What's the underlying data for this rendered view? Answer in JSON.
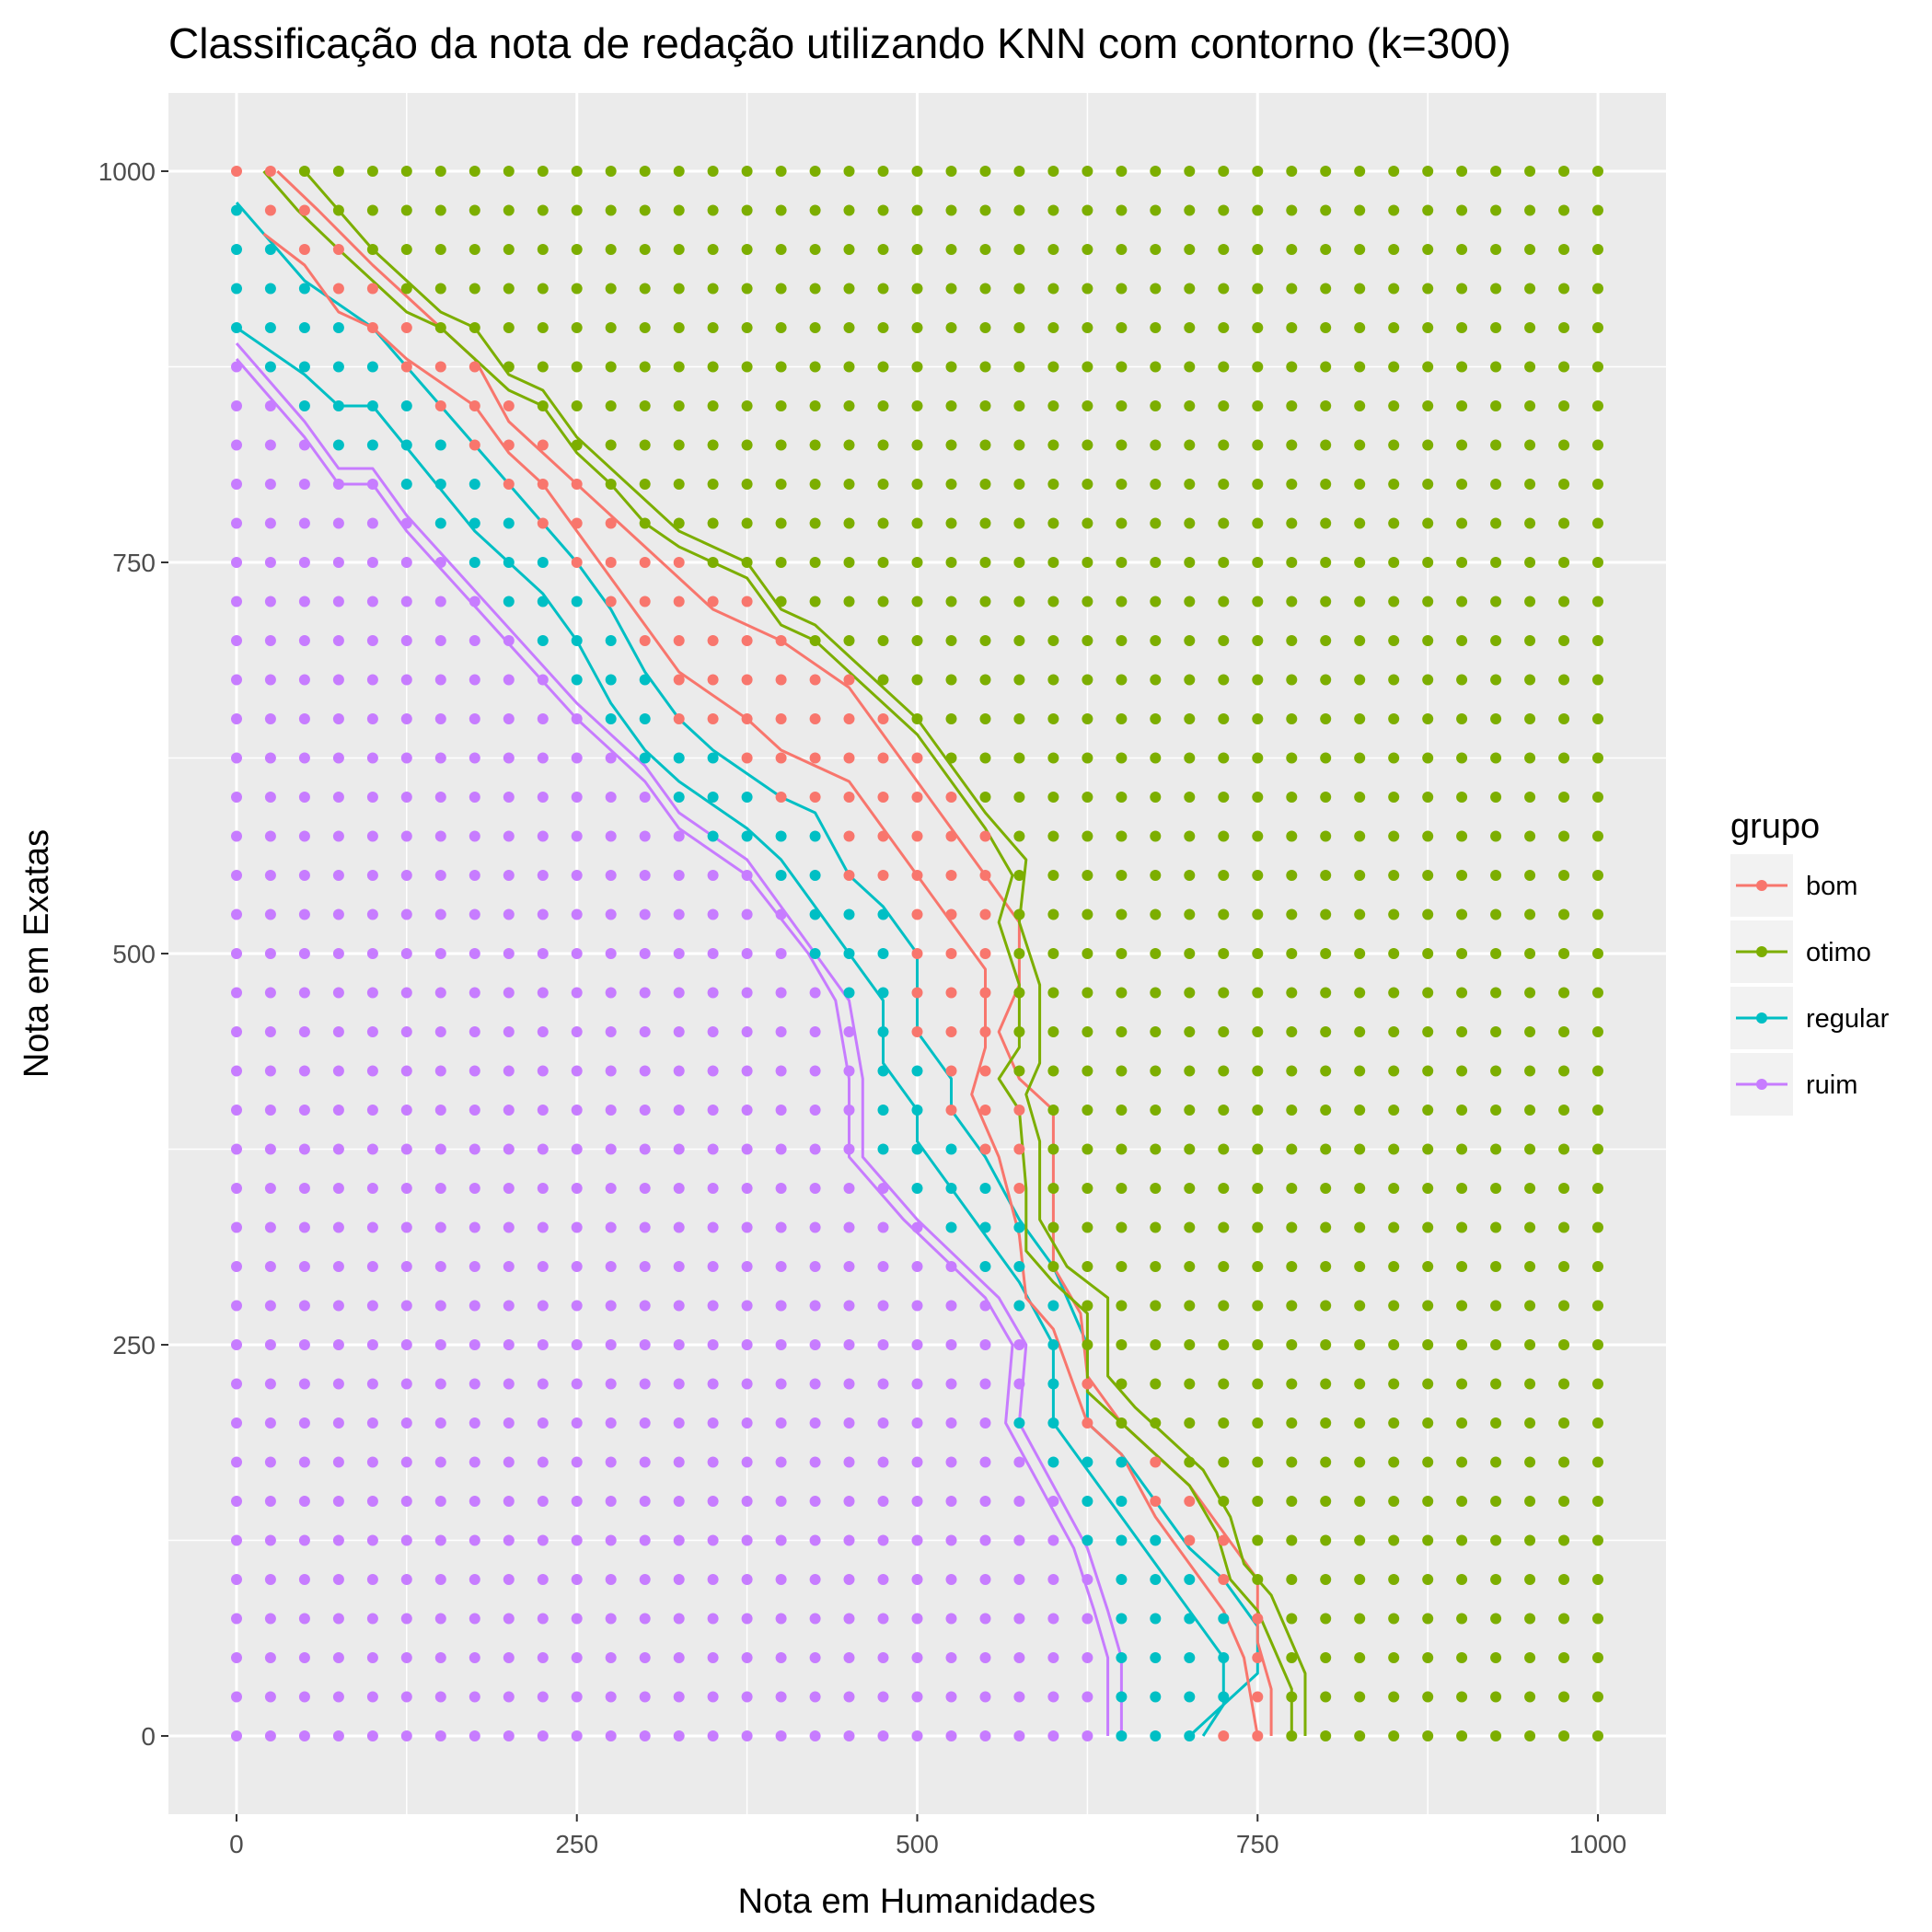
{
  "chart_data": {
    "type": "scatter",
    "title": "Classificação da nota de redação utilizando KNN com contorno (k=300)",
    "xlabel": "Nota em Humanidades",
    "ylabel": "Nota em Exatas",
    "xlim": [
      -50,
      1050
    ],
    "ylim": [
      -50,
      1050
    ],
    "x_ticks": [
      0,
      250,
      500,
      750,
      1000
    ],
    "y_ticks": [
      0,
      250,
      500,
      750,
      1000
    ],
    "x_tick_labels": [
      "0",
      "250",
      "500",
      "750",
      "1000"
    ],
    "y_tick_labels": [
      "0",
      "250",
      "500",
      "750",
      "1000"
    ],
    "grid_step": 25,
    "grid": true,
    "background": "#ebebeb",
    "legend": {
      "title": "grupo",
      "position": "right",
      "entries": [
        "bom",
        "otimo",
        "regular",
        "ruim"
      ]
    },
    "series": [
      {
        "name": "bom",
        "color": "#f8766d"
      },
      {
        "name": "otimo",
        "color": "#7cae00"
      },
      {
        "name": "regular",
        "color": "#00bfc4"
      },
      {
        "name": "ruim",
        "color": "#c77cff"
      }
    ],
    "boundaries": [
      {
        "group": "ruim",
        "color": "#c77cff",
        "points": [
          [
            0,
            890
          ],
          [
            50,
            840
          ],
          [
            75,
            810
          ],
          [
            100,
            810
          ],
          [
            125,
            780
          ],
          [
            250,
            660
          ],
          [
            300,
            620
          ],
          [
            325,
            590
          ],
          [
            375,
            560
          ],
          [
            425,
            500
          ],
          [
            450,
            470
          ],
          [
            460,
            420
          ],
          [
            460,
            370
          ],
          [
            500,
            330
          ],
          [
            560,
            280
          ],
          [
            580,
            250
          ],
          [
            575,
            200
          ],
          [
            600,
            160
          ],
          [
            625,
            120
          ],
          [
            640,
            80
          ],
          [
            650,
            50
          ],
          [
            650,
            0
          ]
        ]
      },
      {
        "name_note": "",
        "group": "ruim",
        "color": "#c77cff",
        "points": [
          [
            0,
            880
          ],
          [
            50,
            830
          ],
          [
            75,
            800
          ],
          [
            100,
            800
          ],
          [
            125,
            770
          ],
          [
            250,
            650
          ],
          [
            300,
            610
          ],
          [
            325,
            580
          ],
          [
            375,
            550
          ],
          [
            420,
            500
          ],
          [
            440,
            470
          ],
          [
            450,
            420
          ],
          [
            450,
            370
          ],
          [
            490,
            330
          ],
          [
            550,
            280
          ],
          [
            570,
            250
          ],
          [
            565,
            200
          ],
          [
            590,
            160
          ],
          [
            615,
            120
          ],
          [
            630,
            80
          ],
          [
            640,
            50
          ],
          [
            640,
            0
          ]
        ]
      },
      {
        "group": "regular",
        "color": "#00bfc4",
        "points": [
          [
            0,
            980
          ],
          [
            50,
            930
          ],
          [
            100,
            900
          ],
          [
            125,
            875
          ],
          [
            200,
            800
          ],
          [
            250,
            750
          ],
          [
            275,
            720
          ],
          [
            300,
            680
          ],
          [
            325,
            650
          ],
          [
            350,
            630
          ],
          [
            400,
            600
          ],
          [
            425,
            590
          ],
          [
            450,
            550
          ],
          [
            475,
            530
          ],
          [
            500,
            500
          ],
          [
            500,
            450
          ],
          [
            525,
            420
          ],
          [
            525,
            400
          ],
          [
            550,
            370
          ],
          [
            575,
            330
          ],
          [
            600,
            300
          ],
          [
            625,
            250
          ],
          [
            625,
            200
          ],
          [
            650,
            180
          ],
          [
            675,
            150
          ],
          [
            700,
            120
          ],
          [
            725,
            100
          ],
          [
            750,
            70
          ],
          [
            750,
            40
          ],
          [
            725,
            20
          ],
          [
            710,
            0
          ]
        ]
      },
      {
        "group": "regular",
        "color": "#00bfc4",
        "points": [
          [
            0,
            900
          ],
          [
            50,
            870
          ],
          [
            75,
            850
          ],
          [
            100,
            850
          ],
          [
            175,
            770
          ],
          [
            225,
            730
          ],
          [
            250,
            700
          ],
          [
            275,
            660
          ],
          [
            300,
            630
          ],
          [
            325,
            610
          ],
          [
            375,
            580
          ],
          [
            400,
            560
          ],
          [
            425,
            530
          ],
          [
            450,
            500
          ],
          [
            475,
            470
          ],
          [
            475,
            430
          ],
          [
            500,
            400
          ],
          [
            500,
            380
          ],
          [
            525,
            350
          ],
          [
            550,
            320
          ],
          [
            575,
            290
          ],
          [
            600,
            250
          ],
          [
            600,
            200
          ],
          [
            625,
            170
          ],
          [
            650,
            140
          ],
          [
            675,
            110
          ],
          [
            700,
            80
          ],
          [
            725,
            50
          ],
          [
            725,
            20
          ],
          [
            700,
            0
          ]
        ]
      },
      {
        "group": "bom",
        "color": "#f8766d",
        "points": [
          [
            30,
            1000
          ],
          [
            60,
            975
          ],
          [
            100,
            940
          ],
          [
            150,
            900
          ],
          [
            175,
            880
          ],
          [
            200,
            840
          ],
          [
            250,
            800
          ],
          [
            275,
            780
          ],
          [
            300,
            760
          ],
          [
            350,
            720
          ],
          [
            400,
            700
          ],
          [
            450,
            670
          ],
          [
            500,
            610
          ],
          [
            525,
            580
          ],
          [
            550,
            550
          ],
          [
            575,
            520
          ],
          [
            575,
            480
          ],
          [
            560,
            450
          ],
          [
            575,
            420
          ],
          [
            600,
            400
          ],
          [
            600,
            370
          ],
          [
            600,
            300
          ],
          [
            620,
            270
          ],
          [
            625,
            230
          ],
          [
            650,
            200
          ],
          [
            675,
            180
          ],
          [
            700,
            160
          ],
          [
            725,
            130
          ],
          [
            750,
            100
          ],
          [
            750,
            60
          ],
          [
            760,
            30
          ],
          [
            760,
            0
          ]
        ]
      },
      {
        "group": "bom",
        "color": "#f8766d",
        "points": [
          [
            20,
            960
          ],
          [
            50,
            940
          ],
          [
            75,
            910
          ],
          [
            100,
            900
          ],
          [
            125,
            880
          ],
          [
            175,
            850
          ],
          [
            200,
            820
          ],
          [
            225,
            800
          ],
          [
            250,
            770
          ],
          [
            275,
            740
          ],
          [
            300,
            710
          ],
          [
            325,
            680
          ],
          [
            375,
            650
          ],
          [
            400,
            630
          ],
          [
            450,
            610
          ],
          [
            475,
            580
          ],
          [
            500,
            550
          ],
          [
            525,
            520
          ],
          [
            550,
            490
          ],
          [
            550,
            440
          ],
          [
            540,
            410
          ],
          [
            560,
            370
          ],
          [
            575,
            320
          ],
          [
            580,
            280
          ],
          [
            600,
            260
          ],
          [
            625,
            200
          ],
          [
            650,
            180
          ],
          [
            675,
            140
          ],
          [
            700,
            110
          ],
          [
            725,
            80
          ],
          [
            740,
            50
          ],
          [
            750,
            0
          ]
        ]
      },
      {
        "group": "otimo",
        "color": "#7cae00",
        "points": [
          [
            20,
            1000
          ],
          [
            45,
            975
          ],
          [
            75,
            950
          ],
          [
            125,
            910
          ],
          [
            150,
            900
          ],
          [
            175,
            880
          ],
          [
            200,
            860
          ],
          [
            225,
            850
          ],
          [
            250,
            820
          ],
          [
            275,
            800
          ],
          [
            300,
            775
          ],
          [
            325,
            760
          ],
          [
            350,
            750
          ],
          [
            375,
            740
          ],
          [
            400,
            710
          ],
          [
            425,
            700
          ],
          [
            450,
            680
          ],
          [
            475,
            660
          ],
          [
            500,
            640
          ],
          [
            525,
            610
          ],
          [
            550,
            580
          ],
          [
            570,
            550
          ],
          [
            560,
            520
          ],
          [
            575,
            480
          ],
          [
            575,
            440
          ],
          [
            560,
            420
          ],
          [
            575,
            400
          ],
          [
            580,
            350
          ],
          [
            580,
            310
          ],
          [
            600,
            290
          ],
          [
            625,
            270
          ],
          [
            625,
            220
          ],
          [
            650,
            200
          ],
          [
            675,
            180
          ],
          [
            700,
            160
          ],
          [
            720,
            130
          ],
          [
            730,
            100
          ],
          [
            750,
            80
          ],
          [
            760,
            60
          ],
          [
            775,
            30
          ],
          [
            775,
            0
          ]
        ]
      },
      {
        "group": "otimo",
        "color": "#7cae00",
        "points": [
          [
            50,
            1000
          ],
          [
            75,
            975
          ],
          [
            100,
            950
          ],
          [
            150,
            910
          ],
          [
            175,
            900
          ],
          [
            200,
            870
          ],
          [
            225,
            860
          ],
          [
            250,
            830
          ],
          [
            275,
            810
          ],
          [
            300,
            790
          ],
          [
            325,
            770
          ],
          [
            350,
            760
          ],
          [
            375,
            750
          ],
          [
            400,
            720
          ],
          [
            425,
            710
          ],
          [
            450,
            690
          ],
          [
            475,
            670
          ],
          [
            500,
            650
          ],
          [
            525,
            620
          ],
          [
            550,
            590
          ],
          [
            580,
            560
          ],
          [
            575,
            520
          ],
          [
            590,
            480
          ],
          [
            590,
            430
          ],
          [
            580,
            410
          ],
          [
            590,
            380
          ],
          [
            590,
            330
          ],
          [
            610,
            300
          ],
          [
            640,
            280
          ],
          [
            640,
            230
          ],
          [
            660,
            210
          ],
          [
            685,
            190
          ],
          [
            710,
            170
          ],
          [
            730,
            140
          ],
          [
            740,
            110
          ],
          [
            760,
            90
          ],
          [
            770,
            70
          ],
          [
            785,
            40
          ],
          [
            785,
            0
          ]
        ]
      }
    ]
  }
}
